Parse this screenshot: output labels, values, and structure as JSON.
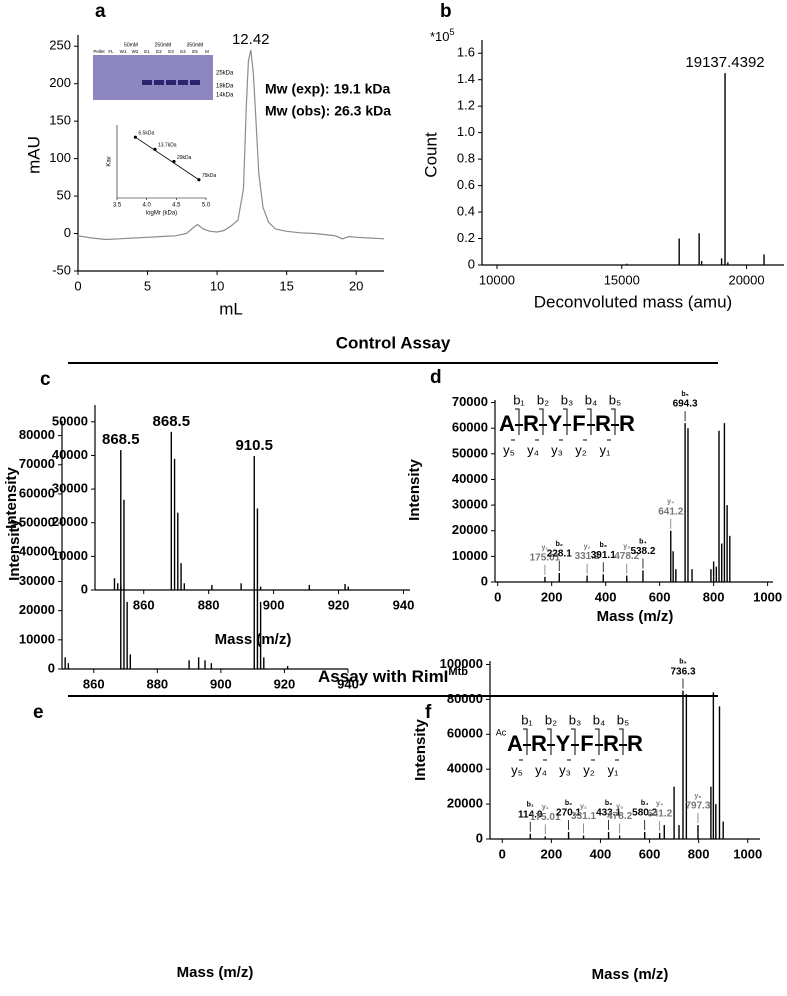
{
  "headings": [
    {
      "text": "Control Assay"
    },
    {
      "text": "Assay with RimI",
      "sup": "Mtb"
    }
  ],
  "chart_data": [
    {
      "panel": "a",
      "type": "line",
      "xlabel": "mL",
      "ylabel": "mAU",
      "xlim": [
        0,
        22
      ],
      "ylim": [
        -50,
        265
      ],
      "xticks": [
        0,
        5,
        10,
        15,
        20
      ],
      "yticks": [
        -50,
        0,
        50,
        100,
        150,
        200,
        250
      ],
      "color": "#8c8c8c",
      "x": [
        0,
        1,
        2,
        3,
        4,
        5,
        6,
        7,
        7.8,
        8.3,
        8.6,
        9,
        9.5,
        10,
        10.5,
        11,
        11.5,
        11.9,
        12.1,
        12.25,
        12.42,
        12.6,
        12.8,
        13.0,
        13.3,
        13.7,
        14.2,
        15,
        16,
        17,
        18,
        18.5,
        19,
        19.5,
        20,
        21,
        22
      ],
      "values": [
        -3,
        -6,
        -8,
        -7,
        -6,
        -5,
        -4,
        -3,
        0,
        8,
        12,
        6,
        3,
        2,
        4,
        10,
        18,
        60,
        170,
        230,
        245,
        215,
        150,
        80,
        35,
        15,
        6,
        3,
        1,
        0,
        -2,
        -3,
        -7,
        -4,
        -5,
        -6,
        -7
      ],
      "peak_labels": [
        12.42
      ],
      "notes": [
        "Mw (exp): 19.1 kDa",
        "Mw (obs): 26.3 kDa"
      ],
      "gel": {
        "lanes": [
          "Pellet",
          "FL",
          "W1",
          "W2",
          "E1",
          "E2",
          "E3",
          "E4",
          "E5",
          "M"
        ],
        "groups": [
          "50mM",
          "250mM",
          "350mM"
        ],
        "markers": [
          "25kDa",
          "18kDa",
          "14kDa"
        ]
      },
      "inset": {
        "type": "scatter",
        "xlabel": "logMr (kDa)",
        "ylabel": "Kav",
        "xlim": [
          3.5,
          5.0
        ],
        "ylim": [
          0,
          0.6
        ],
        "xticks": [
          {
            "value": 3.5,
            "label": "3.5"
          },
          {
            "value": 4,
            "label": "4.0"
          },
          4.5,
          {
            "value": 5,
            "label": "5.0"
          }
        ],
        "x": [
          3.81,
          4.14,
          4.46,
          4.88
        ],
        "values": [
          0.5,
          0.4,
          0.3,
          0.15
        ],
        "point_labels": [
          "6.5kDa",
          "13.7kDa",
          "29kDa",
          "75kDa"
        ]
      }
    },
    {
      "panel": "b",
      "type": "stem",
      "xlabel": "Deconvoluted mass (amu)",
      "ylabel": "Count",
      "y_multiplier": "*10",
      "y_multiplier_exp": "5",
      "xlim": [
        9400,
        21500
      ],
      "ylim": [
        0,
        1.7
      ],
      "xticks": [
        10000,
        15000,
        20000
      ],
      "yticks": [
        0,
        0.2,
        0.4,
        0.6,
        0.8,
        {
          "value": 1,
          "label": "1.0"
        },
        1.2,
        1.4,
        1.6
      ],
      "color": "#000000",
      "x": [
        15200,
        17300,
        18100,
        18200,
        19000,
        19137.4392,
        19250,
        20700
      ],
      "values": [
        0.01,
        0.2,
        0.24,
        0.03,
        0.05,
        1.45,
        0.02,
        0.08
      ],
      "peak_labels": [
        19137.4392
      ]
    },
    {
      "panel": "c",
      "type": "stem",
      "xlabel": "Mass (m/z)",
      "ylabel": "Intensity",
      "xlim": [
        845,
        942
      ],
      "ylim": [
        0,
        55000
      ],
      "xticks": [
        860,
        880,
        900,
        920,
        940
      ],
      "yticks": [
        0,
        10000,
        20000,
        30000,
        40000,
        50000
      ],
      "color": "#000000",
      "x": [
        851,
        852,
        853,
        868.5,
        869.5,
        870.5,
        871.5,
        872.5,
        881,
        890,
        896,
        911,
        922,
        923
      ],
      "values": [
        3500,
        2000,
        1200,
        47000,
        39000,
        23000,
        8000,
        2000,
        1500,
        2000,
        1000,
        1500,
        1800,
        1000
      ],
      "peak_labels": [
        868.5
      ]
    },
    {
      "panel": "d",
      "type": "stem",
      "xlabel": "Mass (m/z)",
      "ylabel": "Intensity",
      "xlim": [
        -10,
        1020
      ],
      "ylim": [
        0,
        71000
      ],
      "xticks": [
        0,
        200,
        400,
        600,
        800,
        1000
      ],
      "yticks": [
        0,
        10000,
        20000,
        30000,
        40000,
        50000,
        60000,
        70000
      ],
      "color": "#000000",
      "x": [
        175.01,
        228.1,
        331.2,
        391.1,
        478.2,
        538.2,
        641.2,
        650,
        660,
        694.3,
        705,
        720,
        790,
        800,
        810,
        820,
        830,
        840,
        850,
        860
      ],
      "values": [
        2000,
        3500,
        2500,
        3000,
        2500,
        4500,
        20000,
        12000,
        5000,
        62000,
        60000,
        5000,
        5000,
        8000,
        6000,
        59000,
        15000,
        62000,
        30000,
        18000
      ],
      "peptide": {
        "residues": [
          "A",
          "R",
          "Y",
          "F",
          "R",
          "R"
        ],
        "b_ions": [
          "b₁",
          "b₂",
          "b₃",
          "b₄",
          "b₅"
        ],
        "y_ions": [
          "y₅",
          "y₄",
          "y₃",
          "y₂",
          "y₁"
        ]
      },
      "fragments": [
        {
          "ion": "y₁",
          "x": 175.01,
          "label": "175.01"
        },
        {
          "ion": "b₂",
          "x": 228.1,
          "label": "228.1"
        },
        {
          "ion": "y₂",
          "x": 331.2,
          "label": "331.2"
        },
        {
          "ion": "b₃",
          "x": 391.1,
          "label": "391.1"
        },
        {
          "ion": "y₃",
          "x": 478.2,
          "label": "478.2"
        },
        {
          "ion": "b₄",
          "x": 538.2,
          "label": "538.2"
        },
        {
          "ion": "y₄",
          "x": 641.2,
          "label": "641.2"
        },
        {
          "ion": "b₅",
          "x": 694.3,
          "label": "694.3"
        }
      ]
    },
    {
      "panel": "e",
      "type": "stem",
      "xlabel": "Mass (m/z)",
      "ylabel": "Intensity",
      "xlim": [
        850,
        940
      ],
      "ylim": [
        0,
        85000
      ],
      "xticks": [
        860,
        880,
        900,
        920,
        940
      ],
      "yticks": [
        0,
        10000,
        20000,
        30000,
        40000,
        50000,
        60000,
        70000,
        80000
      ],
      "color": "#000000",
      "x": [
        851,
        852,
        868.5,
        869.5,
        870.5,
        871.5,
        890,
        893,
        895,
        897,
        910.5,
        911.5,
        912.5,
        913.5,
        921
      ],
      "values": [
        4000,
        2000,
        75000,
        58000,
        23000,
        5000,
        3000,
        4000,
        3000,
        2000,
        73000,
        55000,
        23000,
        4000,
        1000
      ],
      "peak_labels": [
        868.5,
        910.5
      ]
    },
    {
      "panel": "f",
      "type": "stem",
      "xlabel": "Mass (m/z)",
      "ylabel": "Intensity",
      "xlim": [
        -50,
        1050
      ],
      "ylim": [
        0,
        102000
      ],
      "xticks": [
        0,
        200,
        400,
        600,
        800,
        1000
      ],
      "yticks": [
        0,
        20000,
        40000,
        60000,
        80000,
        100000
      ],
      "color": "#000000",
      "x": [
        114,
        175.01,
        270.1,
        331.1,
        433.1,
        478.2,
        580.2,
        641.2,
        660,
        700,
        720,
        736.3,
        750,
        797.3,
        850,
        860,
        870,
        885,
        900
      ],
      "values": [
        3000,
        1500,
        4000,
        2000,
        4000,
        2000,
        4000,
        3500,
        8000,
        30000,
        8000,
        85000,
        83000,
        8000,
        30000,
        84000,
        20000,
        76000,
        10000
      ],
      "peptide": {
        "prefix": "Ac",
        "residues": [
          "A",
          "R",
          "Y",
          "F",
          "R",
          "R"
        ],
        "b_ions": [
          "b₁",
          "b₂",
          "b₃",
          "b₄",
          "b₅"
        ],
        "y_ions": [
          "y₅",
          "y₄",
          "y₃",
          "y₂",
          "y₁"
        ]
      },
      "fragments": [
        {
          "ion": "b₁",
          "x": 114,
          "label": "114.0"
        },
        {
          "ion": "y₁",
          "x": 175.01,
          "label": "175.01"
        },
        {
          "ion": "b₂",
          "x": 270.1,
          "label": "270.1"
        },
        {
          "ion": "y₂",
          "x": 331.1,
          "label": "331.1"
        },
        {
          "ion": "b₃",
          "x": 433.1,
          "label": "433.1"
        },
        {
          "ion": "y₃",
          "x": 478.2,
          "label": "478.2"
        },
        {
          "ion": "b₄",
          "x": 580.2,
          "label": "580.2"
        },
        {
          "ion": "y₄",
          "x": 641.2,
          "label": "641.2"
        },
        {
          "ion": "b₅",
          "x": 736.3,
          "label": "736.3"
        },
        {
          "ion": "y₅",
          "x": 797.3,
          "label": "797.3"
        }
      ]
    }
  ]
}
